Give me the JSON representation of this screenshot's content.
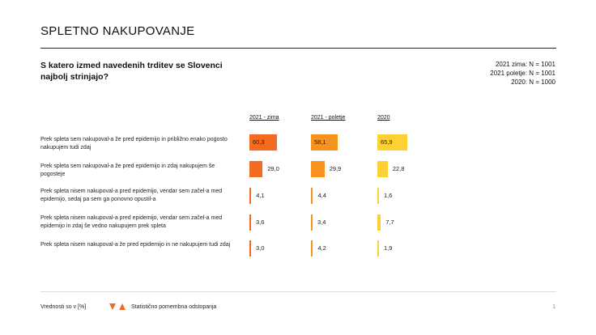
{
  "title": "SPLETNO NAKUPOVANJE",
  "question": "S katero izmed navedenih trditev se Slovenci najbolj strinjajo?",
  "samples": [
    "2021 zima: N = 1001",
    "2021 poletje: N = 1001",
    "2020: N = 1000"
  ],
  "columns": [
    "2021 - zima",
    "2021 - poletje",
    "2020"
  ],
  "colors": {
    "zima": "#f36b21",
    "poletje": "#f7921e",
    "leto2020": "#fdd034"
  },
  "rows": [
    {
      "label": "Prek spleta sem nakupoval-a že pred epidemijo in približno enako pogosto nakupujem tudi zdaj",
      "values": [
        "60,3",
        "58,1",
        "65,9"
      ]
    },
    {
      "label": "Prek spleta sem nakupoval-a že pred epidemijo in zdaj nakupujem še pogosteje",
      "values": [
        "29,0",
        "29,9",
        "22,8"
      ]
    },
    {
      "label": "Prek spleta nisem nakupoval-a pred epidemijo, vendar sem začel-a med epidemijo, sedaj pa sem ga ponovno opustil-a",
      "values": [
        "4,1",
        "4,4",
        "1,6"
      ]
    },
    {
      "label": "Prek spleta nisem nakupoval-a pred epidemijo, vendar sem začel-a med epidemijo in zdaj še vedno nakupujem prek spleta",
      "values": [
        "3,6",
        "3,4",
        "7,7"
      ]
    },
    {
      "label": "Prek spleta nisem nakupoval-a že pred epidemijo in ne nakupujem tudi zdaj",
      "values": [
        "3,0",
        "4,2",
        "1,9"
      ]
    }
  ],
  "chart_data": {
    "type": "bar",
    "categories": [
      "Prek spleta sem nakupoval-a že pred epidemijo in približno enako pogosto nakupujem tudi zdaj",
      "Prek spleta sem nakupoval-a že pred epidemijo in zdaj nakupujem še pogosteje",
      "Prek spleta nisem nakupoval-a pred epidemijo, vendar sem začel-a med epidemijo, sedaj pa sem ga ponovno opustil-a",
      "Prek spleta nisem nakupoval-a pred epidemijo, vendar sem začel-a med epidemijo in zdaj še vedno nakupujem prek spleta",
      "Prek spleta nisem nakupoval-a že pred epidemijo in ne nakupujem tudi zdaj"
    ],
    "series": [
      {
        "name": "2021 - zima",
        "values": [
          60.3,
          29.0,
          4.1,
          3.6,
          3.0
        ]
      },
      {
        "name": "2021 - poletje",
        "values": [
          58.1,
          29.9,
          4.4,
          3.4,
          4.2
        ]
      },
      {
        "name": "2020",
        "values": [
          65.9,
          22.8,
          1.6,
          7.7,
          1.9
        ]
      }
    ]
  },
  "footer": {
    "note": "Vrednosti so v [%]",
    "legend_label": "Statistično pomembna odstopanja",
    "legend_icons": [
      "triangle-down-icon",
      "triangle-up-icon"
    ],
    "page": "1"
  }
}
